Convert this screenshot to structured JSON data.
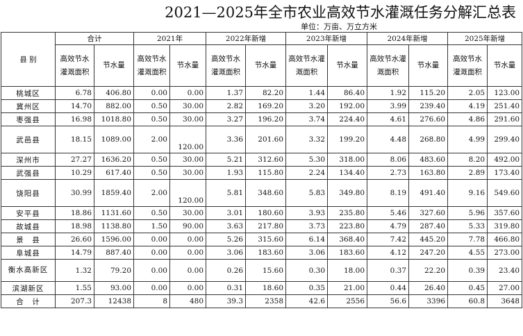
{
  "title": "2021—2025年全市农业高效节水灌溉任务分解汇总表",
  "unit_label": "单位：万亩、万立方米",
  "header": {
    "county": "县 别",
    "groups": [
      "合计",
      "2021年",
      "2022年新增",
      "2023年新增",
      "2024年新增",
      "2025年新增"
    ],
    "sub": [
      [
        "高效节水灌溉面积",
        "节水量"
      ],
      [
        "高效节水灌溉面积",
        "节水量"
      ],
      [
        "高效节水灌溉面积",
        "节水量"
      ],
      [
        "高效节水灌溉面积",
        "节水量"
      ],
      [
        "高效节水灌溉面积",
        "节水量"
      ],
      [
        "高效节水灌溉面积",
        "节水量"
      ]
    ]
  },
  "rows": [
    {
      "county": "桃城区",
      "v": [
        "6.78",
        "406.80",
        "0.00",
        "0.00",
        "1.37",
        "82.20",
        "1.44",
        "86.40",
        "1.92",
        "115.20",
        "2.05",
        "123.00"
      ]
    },
    {
      "county": "冀州区",
      "v": [
        "14.70",
        "882.00",
        "0.50",
        "30.00",
        "2.82",
        "169.20",
        "3.20",
        "192.00",
        "3.99",
        "239.40",
        "4.19",
        "251.40"
      ]
    },
    {
      "county": "枣强县",
      "v": [
        "16.98",
        "1018.80",
        "0.50",
        "30.00",
        "3.27",
        "196.20",
        "3.74",
        "224.40",
        "4.61",
        "276.60",
        "4.86",
        "291.60"
      ]
    },
    {
      "county": "武邑县",
      "v": [
        "18.15",
        "1089.00",
        "2.00",
        "120.00",
        "3.36",
        "201.60",
        "3.32",
        "199.20",
        "4.48",
        "268.80",
        "4.99",
        "299.40"
      ]
    },
    {
      "county": "深州市",
      "v": [
        "27.27",
        "1636.20",
        "0.50",
        "30.00",
        "5.21",
        "312.60",
        "5.30",
        "318.00",
        "8.06",
        "483.60",
        "8.20",
        "492.00"
      ]
    },
    {
      "county": "武强县",
      "v": [
        "10.29",
        "617.40",
        "0.50",
        "30.00",
        "1.93",
        "115.80",
        "2.24",
        "134.40",
        "2.73",
        "163.80",
        "2.89",
        "173.40"
      ]
    },
    {
      "county": "饶阳县",
      "v": [
        "30.99",
        "1859.40",
        "2.00",
        "120.00",
        "5.81",
        "348.60",
        "5.83",
        "349.80",
        "8.19",
        "491.40",
        "9.16",
        "549.60"
      ]
    },
    {
      "county": "安平县",
      "v": [
        "18.86",
        "1131.60",
        "0.50",
        "30.00",
        "3.01",
        "180.60",
        "3.93",
        "235.80",
        "5.46",
        "327.60",
        "5.96",
        "357.60"
      ]
    },
    {
      "county": "故城县",
      "v": [
        "18.98",
        "1138.80",
        "1.50",
        "90.00",
        "3.63",
        "217.80",
        "3.73",
        "223.80",
        "4.79",
        "287.40",
        "5.33",
        "319.80"
      ]
    },
    {
      "county": "景　县",
      "v": [
        "26.60",
        "1596.00",
        "0.00",
        "0.00",
        "5.26",
        "315.60",
        "6.14",
        "368.40",
        "7.42",
        "445.20",
        "7.78",
        "466.80"
      ]
    },
    {
      "county": "阜城县",
      "v": [
        "14.79",
        "887.40",
        "0.00",
        "0.00",
        "3.06",
        "183.60",
        "3.06",
        "183.60",
        "4.12",
        "247.20",
        "4.55",
        "273.00"
      ]
    },
    {
      "county": "衡水高新区",
      "v": [
        "1.32",
        "79.20",
        "0.00",
        "0.00",
        "0.26",
        "15.60",
        "0.30",
        "18.00",
        "0.37",
        "22.20",
        "0.39",
        "23.40"
      ]
    },
    {
      "county": "滨湖新区",
      "v": [
        "1.55",
        "93.00",
        "0.00",
        "0.00",
        "0.31",
        "18.60",
        "0.35",
        "21.00",
        "0.44",
        "26.40",
        "0.45",
        "27.00"
      ]
    },
    {
      "county": "合　计",
      "v": [
        "207.3",
        "12438",
        "8",
        "480",
        "39.3",
        "2358",
        "42.6",
        "2556",
        "56.6",
        "3396",
        "60.8",
        "3648"
      ]
    }
  ]
}
